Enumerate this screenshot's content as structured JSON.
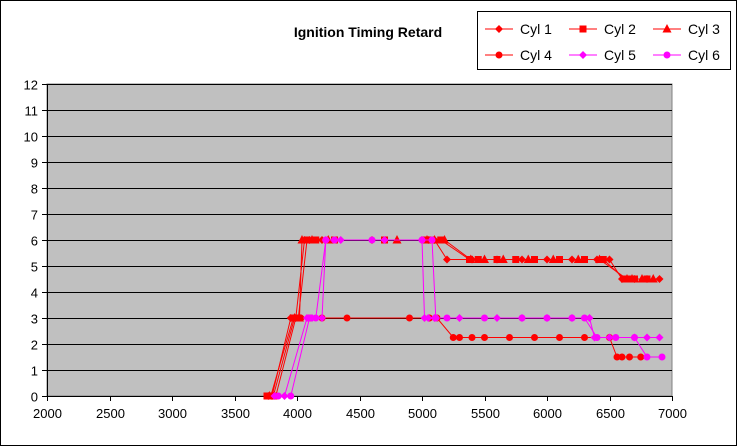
{
  "chart_data": {
    "type": "line",
    "title": "Ignition Timing Retard",
    "xlabel": "",
    "ylabel": "",
    "xlim": [
      2000,
      7000
    ],
    "ylim": [
      0,
      12
    ],
    "x_ticks": [
      2000,
      2500,
      3000,
      3500,
      4000,
      4500,
      5000,
      5500,
      6000,
      6500,
      7000
    ],
    "y_ticks": [
      0,
      1,
      2,
      3,
      4,
      5,
      6,
      7,
      8,
      9,
      10,
      11,
      12
    ],
    "grid": "horizontal",
    "plot_background": "#c0c0c0",
    "legend_position": "top-right",
    "series": [
      {
        "name": "Cyl 1",
        "color": "#ff0000",
        "marker": "diamond",
        "x": [
          3770,
          3800,
          3950,
          3990,
          4060,
          4100,
          4200,
          4600,
          5000,
          5050,
          5100,
          5200,
          5400,
          5600,
          5800,
          6000,
          6200,
          6400,
          6500,
          6600,
          6700,
          6800,
          6900
        ],
        "y": [
          0,
          0,
          3,
          3,
          6,
          6,
          6,
          6,
          6,
          6,
          6,
          5.25,
          5.25,
          5.25,
          5.25,
          5.25,
          5.25,
          5.25,
          5.25,
          4.5,
          4.5,
          4.5,
          4.5
        ]
      },
      {
        "name": "Cyl 2",
        "color": "#ff0000",
        "marker": "square",
        "x": [
          3760,
          3790,
          3970,
          4010,
          4080,
          4150,
          4300,
          4700,
          5020,
          5080,
          5150,
          5380,
          5450,
          5600,
          5750,
          5900,
          6100,
          6300,
          6450,
          6620,
          6650,
          6700,
          6800
        ],
        "y": [
          0,
          0,
          3,
          3,
          6,
          6,
          6,
          6,
          6,
          6,
          6,
          5.25,
          5.25,
          5.25,
          5.25,
          5.25,
          5.25,
          5.25,
          5.25,
          4.5,
          4.5,
          4.5,
          4.5
        ]
      },
      {
        "name": "Cyl 3",
        "color": "#ff0000",
        "marker": "triangle",
        "x": [
          3780,
          3810,
          3980,
          4020,
          4040,
          4120,
          4250,
          4800,
          5040,
          5100,
          5180,
          5390,
          5500,
          5650,
          5850,
          6050,
          6250,
          6420,
          6640,
          6680,
          6760,
          6850
        ],
        "y": [
          0,
          0,
          3,
          3,
          6,
          6,
          6,
          6,
          6,
          6,
          6,
          5.25,
          5.25,
          5.25,
          5.25,
          5.25,
          5.25,
          5.25,
          4.5,
          4.5,
          4.5,
          4.5
        ]
      },
      {
        "name": "Cyl 4",
        "color": "#ff0000",
        "marker": "circle",
        "x": [
          3790,
          3830,
          3990,
          4030,
          4100,
          4200,
          4400,
          4900,
          5060,
          5120,
          5250,
          5300,
          5400,
          5500,
          5700,
          5900,
          6100,
          6300,
          6500,
          6560,
          6600,
          6660,
          6750
        ],
        "y": [
          0,
          0,
          3,
          3,
          3,
          3,
          3,
          3,
          3,
          3,
          2.25,
          2.25,
          2.25,
          2.25,
          2.25,
          2.25,
          2.25,
          2.25,
          2.25,
          1.5,
          1.5,
          1.5,
          1.5
        ]
      },
      {
        "name": "Cyl 5",
        "color": "#ff00ff",
        "marker": "diamond",
        "x": [
          3820,
          3900,
          4080,
          4120,
          4200,
          4230,
          4350,
          4700,
          5000,
          5020,
          5050,
          5100,
          5300,
          5600,
          5800,
          6000,
          6200,
          6340,
          6380,
          6500,
          6700,
          6800,
          6900
        ],
        "y": [
          0,
          0,
          3,
          3,
          3,
          6,
          6,
          6,
          6,
          3,
          3,
          3,
          3,
          3,
          3,
          3,
          3,
          3,
          2.25,
          2.25,
          2.25,
          2.25,
          2.25
        ]
      },
      {
        "name": "Cyl 6",
        "color": "#ff00ff",
        "marker": "circle",
        "x": [
          3850,
          3950,
          4100,
          4150,
          4230,
          4300,
          4600,
          5000,
          5080,
          5110,
          5200,
          5500,
          5800,
          6000,
          6200,
          6300,
          6400,
          6550,
          6700,
          6800,
          6920
        ],
        "y": [
          0,
          0,
          3,
          3,
          6,
          6,
          6,
          6,
          6,
          3,
          3,
          3,
          3,
          3,
          3,
          3,
          2.25,
          2.25,
          2.25,
          1.5,
          1.5
        ]
      }
    ]
  }
}
